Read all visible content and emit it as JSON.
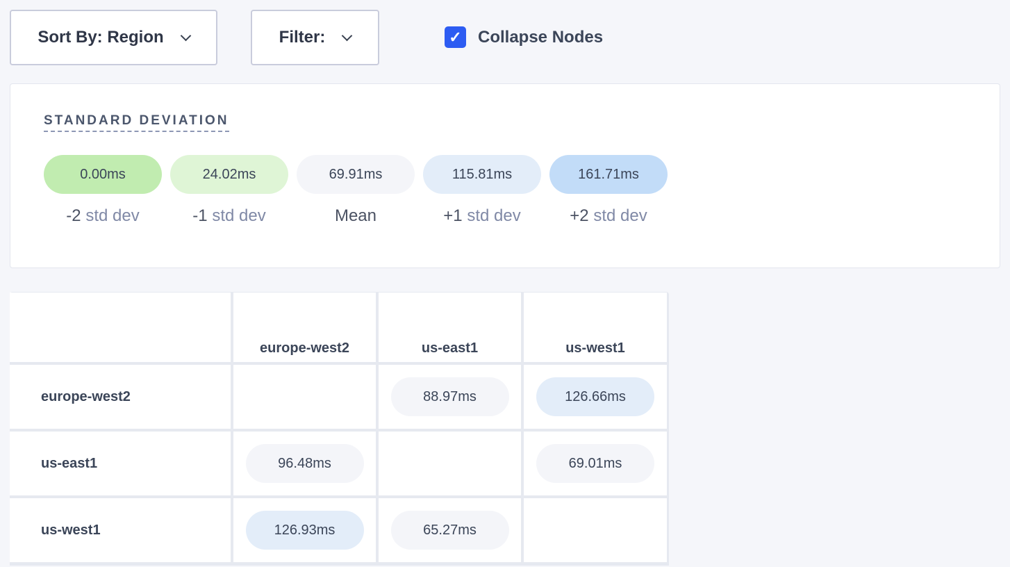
{
  "toolbar": {
    "sort_label": "Sort By: Region",
    "filter_label": "Filter:",
    "collapse_label": "Collapse Nodes",
    "collapse_checked": true
  },
  "std_dev": {
    "title": "STANDARD DEVIATION",
    "items": [
      {
        "value": "0.00ms",
        "prefix": "-2",
        "unit": "std dev",
        "color": "#c1ecb0"
      },
      {
        "value": "24.02ms",
        "prefix": "-1",
        "unit": "std dev",
        "color": "#dff5d6"
      },
      {
        "value": "69.91ms",
        "prefix": "Mean",
        "unit": "",
        "color": "#f4f5f9"
      },
      {
        "value": "115.81ms",
        "prefix": "+1",
        "unit": "std dev",
        "color": "#e3edf9"
      },
      {
        "value": "161.71ms",
        "prefix": "+2",
        "unit": "std dev",
        "color": "#c2dcf8"
      }
    ]
  },
  "matrix": {
    "columns": [
      "europe-west2",
      "us-east1",
      "us-west1"
    ],
    "rows": [
      {
        "name": "europe-west2",
        "cells": [
          "",
          "88.97ms",
          "126.66ms"
        ],
        "colors": [
          "",
          "#f4f5f9",
          "#e3edf9"
        ]
      },
      {
        "name": "us-east1",
        "cells": [
          "96.48ms",
          "",
          "69.01ms"
        ],
        "colors": [
          "#f4f5f9",
          "",
          "#f4f5f9"
        ]
      },
      {
        "name": "us-west1",
        "cells": [
          "126.93ms",
          "65.27ms",
          ""
        ],
        "colors": [
          "#e3edf9",
          "#f4f5f9",
          ""
        ]
      }
    ]
  }
}
